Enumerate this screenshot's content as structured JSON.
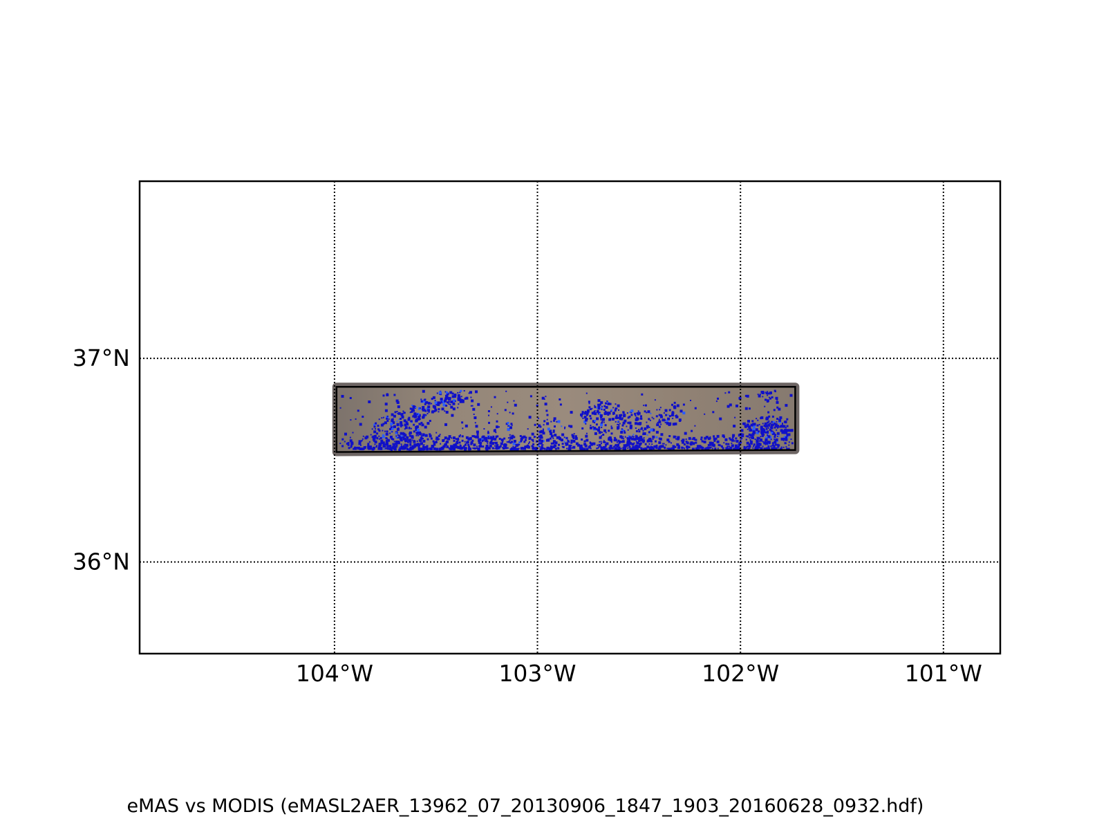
{
  "map": {
    "caption": "eMAS vs MODIS (eMASL2AER_13962_07_20130906_1847_1903_20160628_0932.hdf)",
    "extent": {
      "lon_min": -104.96,
      "lon_max": -100.72,
      "lat_min": 35.55,
      "lat_max": 37.87
    },
    "gridlines": {
      "style": "dotted",
      "meridians": [
        {
          "lon": -104,
          "label": "104°W"
        },
        {
          "lon": -103,
          "label": "103°W"
        },
        {
          "lon": -102,
          "label": "102°W"
        },
        {
          "lon": -101,
          "label": "101°W"
        }
      ],
      "parallels": [
        {
          "lat": 37,
          "label": "37°N"
        },
        {
          "lat": 36,
          "label": "36°N"
        }
      ]
    },
    "swath": {
      "corners": {
        "north_west": [
          -103.99,
          36.86
        ],
        "north_east": [
          -101.73,
          36.86
        ],
        "south_east": [
          -101.73,
          36.55
        ],
        "south_west": [
          -103.99,
          36.54
        ]
      },
      "outline_color": "#000000",
      "ground_color": "#8f8379",
      "aerosol_color": "#1010c8",
      "aerosol_light_color": "#2a5cff"
    }
  }
}
